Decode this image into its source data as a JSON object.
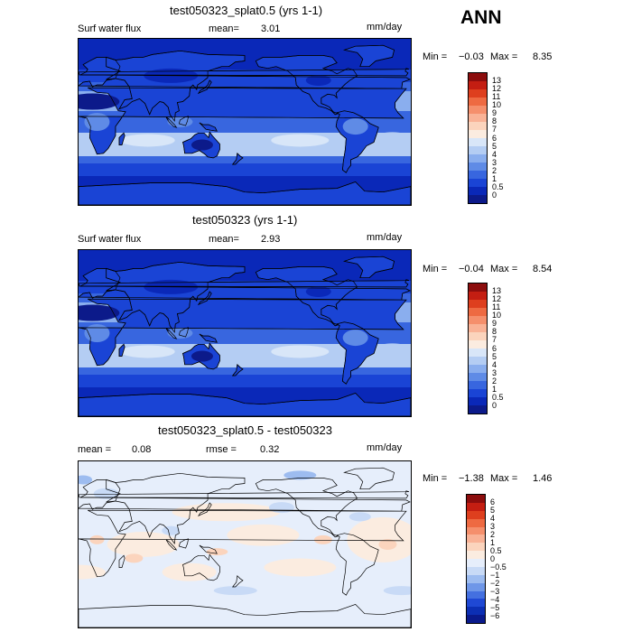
{
  "season": "ANN",
  "panels": [
    {
      "title": "test050323_splat0.5 (yrs 1-1)",
      "variable": "Surf water flux",
      "mean_label": "mean=",
      "mean_value": "3.01",
      "rmse_label": "",
      "rmse_value": "",
      "units": "mm/day",
      "min_label": "Min =",
      "min_value": "−0.03",
      "max_label": "Max =",
      "max_value": "8.35",
      "colorbar_ticks": [
        "13",
        "12",
        "11",
        "10",
        "9",
        "8",
        "7",
        "6",
        "5",
        "4",
        "3",
        "2",
        "1",
        "0.5",
        "0"
      ],
      "colorbar_colors": [
        "#8c0d0d",
        "#c41e12",
        "#de3f1e",
        "#ee6a42",
        "#f58f6c",
        "#f9b296",
        "#fbd4bd",
        "#fbece0",
        "#d8e6f8",
        "#b4cdf3",
        "#8aaeee",
        "#5f8be6",
        "#3866df",
        "#1a44d5",
        "#0a28b8",
        "#0c1a8a"
      ],
      "field": "absolute"
    },
    {
      "title": "test050323 (yrs 1-1)",
      "variable": "Surf water flux",
      "mean_label": "mean=",
      "mean_value": "2.93",
      "rmse_label": "",
      "rmse_value": "",
      "units": "mm/day",
      "min_label": "Min =",
      "min_value": "−0.04",
      "max_label": "Max =",
      "max_value": "8.54",
      "colorbar_ticks": [
        "13",
        "12",
        "11",
        "10",
        "9",
        "8",
        "7",
        "6",
        "5",
        "4",
        "3",
        "2",
        "1",
        "0.5",
        "0"
      ],
      "colorbar_colors": [
        "#8c0d0d",
        "#c41e12",
        "#de3f1e",
        "#ee6a42",
        "#f58f6c",
        "#f9b296",
        "#fbd4bd",
        "#fbece0",
        "#d8e6f8",
        "#b4cdf3",
        "#8aaeee",
        "#5f8be6",
        "#3866df",
        "#1a44d5",
        "#0a28b8",
        "#0c1a8a"
      ],
      "field": "absolute"
    },
    {
      "title": "test050323_splat0.5 - test050323",
      "variable": "",
      "mean_label": "mean =",
      "mean_value": "0.08",
      "rmse_label": "rmse =",
      "rmse_value": "0.32",
      "units": "mm/day",
      "min_label": "Min =",
      "min_value": "−1.38",
      "max_label": "Max =",
      "max_value": "1.46",
      "colorbar_ticks": [
        "6",
        "5",
        "4",
        "3",
        "2",
        "1",
        "0.5",
        "0",
        "−0.5",
        "−1",
        "−2",
        "−3",
        "−4",
        "−5",
        "−6"
      ],
      "colorbar_colors": [
        "#8c0d0d",
        "#c41e12",
        "#de3f1e",
        "#ee6a42",
        "#f58f6c",
        "#f9b296",
        "#fbd4bd",
        "#fbece0",
        "#e6eefb",
        "#c8daf6",
        "#9dbcf0",
        "#6f97e8",
        "#4470e0",
        "#1f48d4",
        "#0c2fb4",
        "#0a1a8c"
      ],
      "field": "difference"
    }
  ]
}
